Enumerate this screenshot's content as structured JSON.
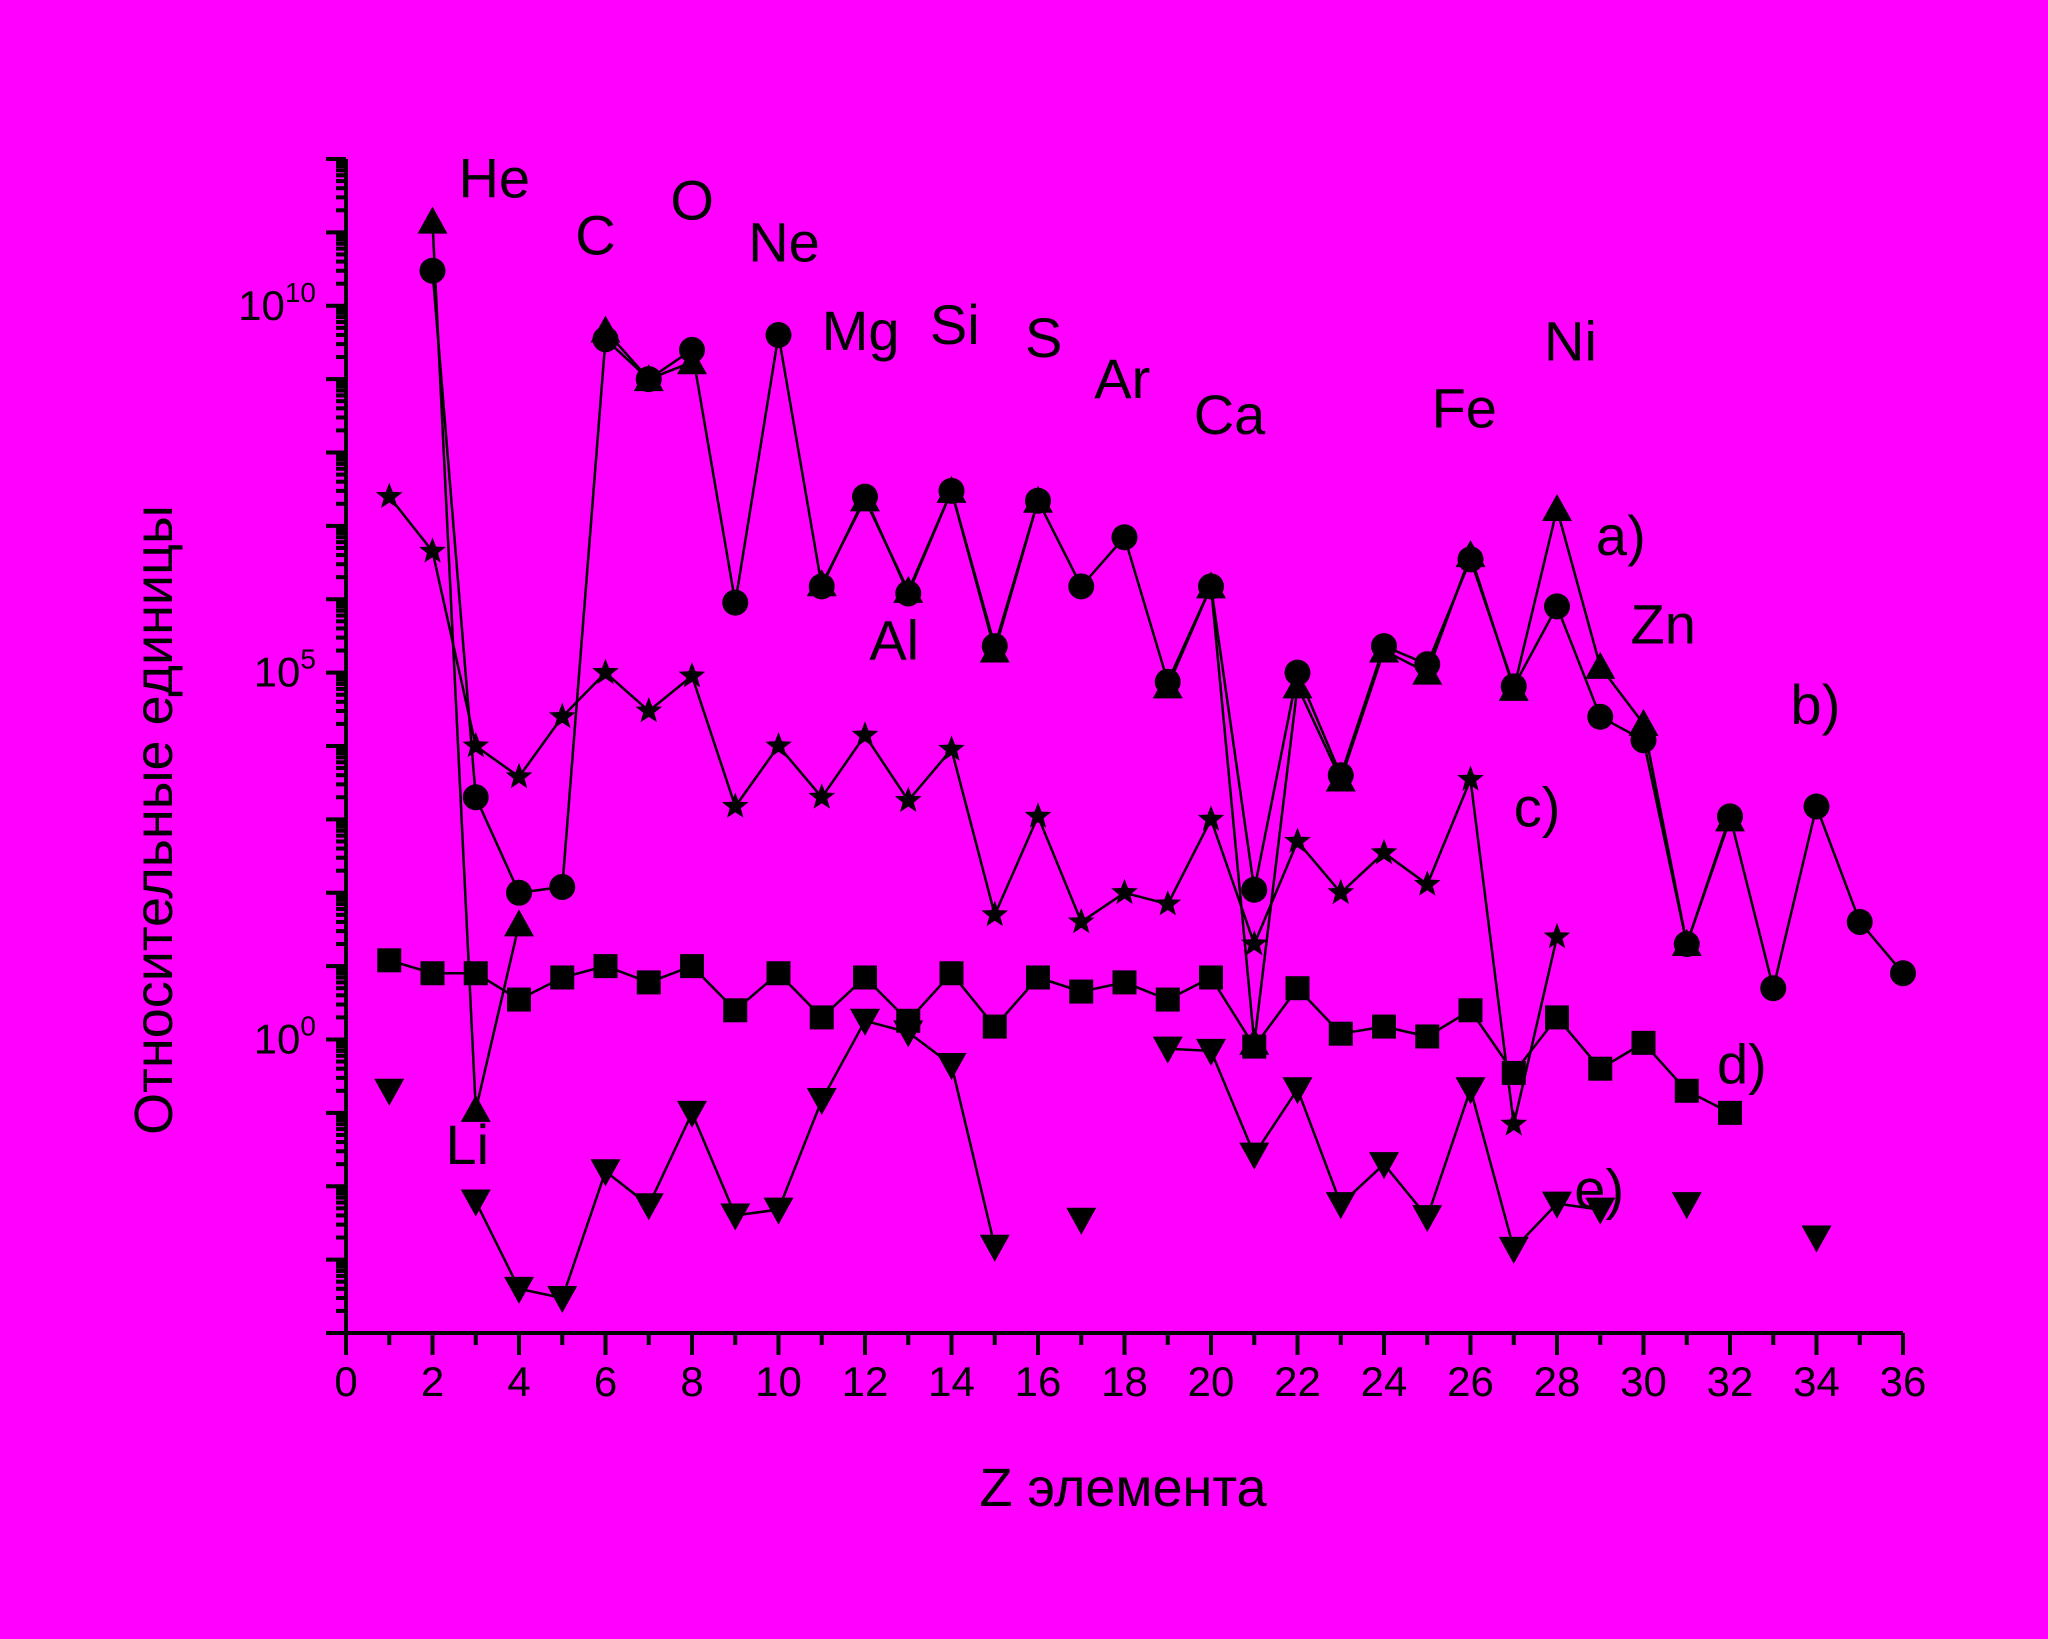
{
  "chart_data": {
    "type": "line",
    "title": "",
    "xlabel": "Z элемента",
    "ylabel": "Относительные единицы",
    "xlim": [
      0,
      36
    ],
    "ylim_log10": [
      -4,
      12
    ],
    "yscale": "log",
    "x_ticks": [
      0,
      2,
      4,
      6,
      8,
      10,
      12,
      14,
      16,
      18,
      20,
      22,
      24,
      26,
      28,
      30,
      32,
      34,
      36
    ],
    "x_tick_labels": [
      "0",
      "2",
      "4",
      "6",
      "8",
      "10",
      "12",
      "14",
      "16",
      "18",
      "20",
      "22",
      "24",
      "26",
      "28",
      "30",
      "32",
      "34",
      "36"
    ],
    "y_ticks": [
      {
        "base": "10",
        "exp": "0",
        "value": 1
      },
      {
        "base": "10",
        "exp": "5",
        "value": 100000
      },
      {
        "base": "10",
        "exp": "10",
        "value": 10000000000
      }
    ],
    "grid": false,
    "colors": {
      "background": "#ff00ff",
      "ink": "#000000"
    },
    "series": [
      {
        "name": "a)",
        "marker": "triangle-up",
        "x": [
          2,
          3,
          4,
          6,
          7,
          8,
          11,
          12,
          13,
          14,
          15,
          16,
          19,
          20,
          21,
          22,
          23,
          24,
          25,
          26,
          27,
          28,
          29,
          30,
          31,
          32
        ],
        "y": [
          140000000000.0,
          0.11,
          37,
          4600000000.0,
          1000000000.0,
          1700000000.0,
          1600000.0,
          23000000.0,
          1300000.0,
          30000000.0,
          200000.0,
          22000000.0,
          65000.0,
          1500000.0,
          0.9,
          65000.0,
          3500.0,
          200000.0,
          100000.0,
          4000000.0,
          60000.0,
          17000000.0,
          120000.0,
          20000.0,
          20,
          1000.0
        ]
      },
      {
        "name": "b)",
        "marker": "circle",
        "x": [
          2,
          3,
          4,
          5,
          6,
          7,
          8,
          9,
          10,
          11,
          12,
          13,
          14,
          15,
          16,
          17,
          18,
          19,
          20,
          21,
          22,
          23,
          24,
          25,
          26,
          27,
          28,
          29,
          30,
          31,
          32,
          33,
          34,
          35,
          36
        ],
        "y": [
          30000000000.0,
          2000.0,
          100,
          120,
          3500000000.0,
          1000000000.0,
          2500000000.0,
          900000.0,
          4000000000.0,
          1500000.0,
          25000000.0,
          1200000.0,
          30000000.0,
          230000.0,
          22000000.0,
          1500000.0,
          7000000.0,
          75000.0,
          1500000.0,
          110,
          100000.0,
          4000.0,
          230000.0,
          130000.0,
          3500000.0,
          65000.0,
          800000.0,
          25000.0,
          12000.0,
          20,
          1100.0,
          5,
          1500.0,
          40,
          8
        ]
      },
      {
        "name": "c)",
        "marker": "star",
        "x": [
          1,
          2,
          3,
          4,
          5,
          6,
          7,
          8,
          9,
          10,
          11,
          12,
          13,
          14,
          15,
          16,
          17,
          18,
          19,
          20,
          21,
          22,
          23,
          24,
          25,
          26,
          27,
          28
        ],
        "y": [
          25000000.0,
          4500000.0,
          10000.0,
          3800.0,
          25000.0,
          100000.0,
          30000.0,
          90000.0,
          1500.0,
          10000.0,
          2000.0,
          14000.0,
          1800.0,
          9000.0,
          50,
          1100.0,
          40,
          100,
          70,
          1000.0,
          20,
          500,
          100,
          350,
          130,
          3500.0,
          0.07,
          25
        ]
      },
      {
        "name": "d)",
        "marker": "square",
        "x": [
          1,
          2,
          3,
          4,
          5,
          6,
          7,
          8,
          9,
          10,
          11,
          12,
          13,
          14,
          15,
          16,
          17,
          18,
          19,
          20,
          21,
          22,
          23,
          24,
          25,
          26,
          27,
          28,
          29,
          30,
          31,
          32
        ],
        "y": [
          12,
          8,
          8,
          3.5,
          7,
          10,
          6,
          10,
          2.5,
          8,
          2,
          7,
          1.8,
          8,
          1.5,
          7,
          4.5,
          6,
          3.5,
          7,
          0.8,
          5,
          1.2,
          1.5,
          1.1,
          2.5,
          0.35,
          2,
          0.4,
          0.9,
          0.2,
          0.1
        ]
      },
      {
        "name": "e)",
        "marker": "triangle-down",
        "x": [
          1,
          3,
          4,
          5,
          6,
          7,
          8,
          9,
          10,
          11,
          12,
          13,
          14,
          15,
          17,
          19,
          20,
          21,
          22,
          23,
          24,
          25,
          26,
          27,
          28,
          29,
          31,
          34
        ],
        "y": [
          0.2,
          0.0062,
          0.0004,
          0.0003,
          0.016,
          0.0055,
          0.1,
          0.004,
          0.0048,
          0.15,
          1.8,
          1.25,
          0.45,
          0.0015,
          0.0035,
          0.75,
          0.7,
          0.027,
          0.21,
          0.0057,
          0.02,
          0.0038,
          0.21,
          0.0014,
          0.0058,
          0.0048,
          0.0057,
          0.002
        ]
      }
    ],
    "annotations": [
      {
        "text": "He",
        "x": 2.6,
        "y": 300000000000.0
      },
      {
        "text": "C",
        "x": 5.3,
        "y": 50000000000.0
      },
      {
        "text": "O",
        "x": 7.5,
        "y": 150000000000.0
      },
      {
        "text": "Ne",
        "x": 9.3,
        "y": 40000000000.0
      },
      {
        "text": "Mg",
        "x": 11.0,
        "y": 2500000000.0
      },
      {
        "text": "Si",
        "x": 13.5,
        "y": 3000000000.0
      },
      {
        "text": "S",
        "x": 15.7,
        "y": 2000000000.0
      },
      {
        "text": "Ar",
        "x": 17.3,
        "y": 550000000.0
      },
      {
        "text": "Ca",
        "x": 19.6,
        "y": 180000000.0
      },
      {
        "text": "Al",
        "x": 12.1,
        "y": 150000.0
      },
      {
        "text": "Fe",
        "x": 25.1,
        "y": 220000000.0
      },
      {
        "text": "Ni",
        "x": 27.7,
        "y": 1800000000.0
      },
      {
        "text": "Zn",
        "x": 29.7,
        "y": 250000.0
      },
      {
        "text": "Li",
        "x": 2.3,
        "y": 0.02
      },
      {
        "text": "a)",
        "x": 28.9,
        "y": 4000000.0
      },
      {
        "text": "b)",
        "x": 33.4,
        "y": 20000.0
      },
      {
        "text": "c)",
        "x": 27.0,
        "y": 800
      },
      {
        "text": "d)",
        "x": 31.7,
        "y": 0.25
      },
      {
        "text": "e)",
        "x": 28.4,
        "y": 0.005
      }
    ]
  }
}
